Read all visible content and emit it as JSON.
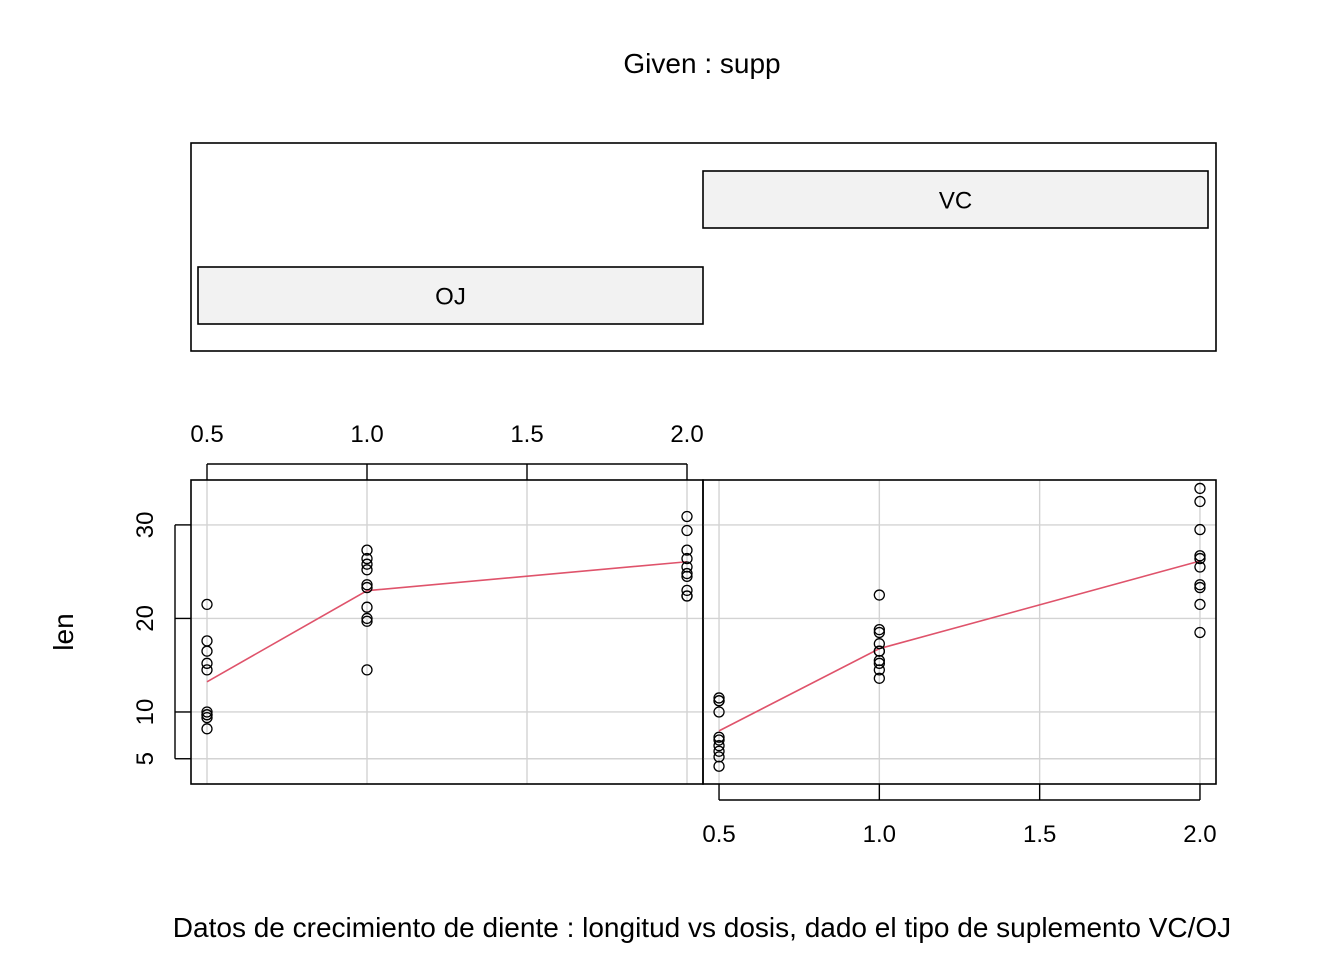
{
  "chart_data": {
    "type": "scatter",
    "title": "Given : supp",
    "xlabel": "Datos de crecimiento de diente : longitud vs dosis, dado el tipo de suplemento VC/OJ",
    "ylabel": "len",
    "xlim": [
      0.45,
      2.05
    ],
    "ylim": [
      2.3,
      34.8
    ],
    "x_ticks": [
      "0.5",
      "1.0",
      "1.5",
      "2.0"
    ],
    "y_ticks": [
      "5",
      "10",
      "20",
      "30"
    ],
    "grid": true,
    "given": {
      "variable": "supp",
      "levels": [
        "OJ",
        "VC"
      ]
    },
    "panels": [
      {
        "level": "OJ",
        "points": {
          "x": [
            0.5,
            0.5,
            0.5,
            0.5,
            0.5,
            0.5,
            0.5,
            0.5,
            0.5,
            0.5,
            1.0,
            1.0,
            1.0,
            1.0,
            1.0,
            1.0,
            1.0,
            1.0,
            1.0,
            1.0,
            2.0,
            2.0,
            2.0,
            2.0,
            2.0,
            2.0,
            2.0,
            2.0,
            2.0,
            2.0
          ],
          "y": [
            21.5,
            17.6,
            16.5,
            15.2,
            14.5,
            10.0,
            9.7,
            9.4,
            9.7,
            8.2,
            27.3,
            26.4,
            25.8,
            25.2,
            23.6,
            23.3,
            21.2,
            20.0,
            19.7,
            14.5,
            30.9,
            29.4,
            27.3,
            26.4,
            25.5,
            24.8,
            24.5,
            23.0,
            22.4,
            22.4
          ]
        },
        "smooth": {
          "x": [
            0.5,
            1.0,
            2.0
          ],
          "y": [
            13.23,
            22.97,
            26.06
          ]
        }
      },
      {
        "level": "VC",
        "points": {
          "x": [
            0.5,
            0.5,
            0.5,
            0.5,
            0.5,
            0.5,
            0.5,
            0.5,
            0.5,
            0.5,
            1.0,
            1.0,
            1.0,
            1.0,
            1.0,
            1.0,
            1.0,
            1.0,
            1.0,
            1.0,
            2.0,
            2.0,
            2.0,
            2.0,
            2.0,
            2.0,
            2.0,
            2.0,
            2.0,
            2.0
          ],
          "y": [
            4.2,
            5.2,
            5.8,
            6.4,
            7.0,
            7.3,
            10.0,
            11.2,
            11.2,
            11.5,
            13.6,
            14.5,
            15.2,
            15.5,
            16.5,
            16.5,
            17.3,
            18.5,
            18.8,
            22.5,
            18.5,
            21.5,
            23.3,
            23.6,
            25.5,
            26.4,
            26.7,
            29.5,
            32.5,
            33.9
          ]
        },
        "smooth": {
          "x": [
            0.5,
            1.0,
            2.0
          ],
          "y": [
            7.98,
            16.77,
            26.14
          ]
        }
      }
    ],
    "colors": {
      "smooth": "#DF536B",
      "points": "#000000",
      "grid": "#d3d3d3",
      "given_bar": "#f2f2f2"
    }
  }
}
